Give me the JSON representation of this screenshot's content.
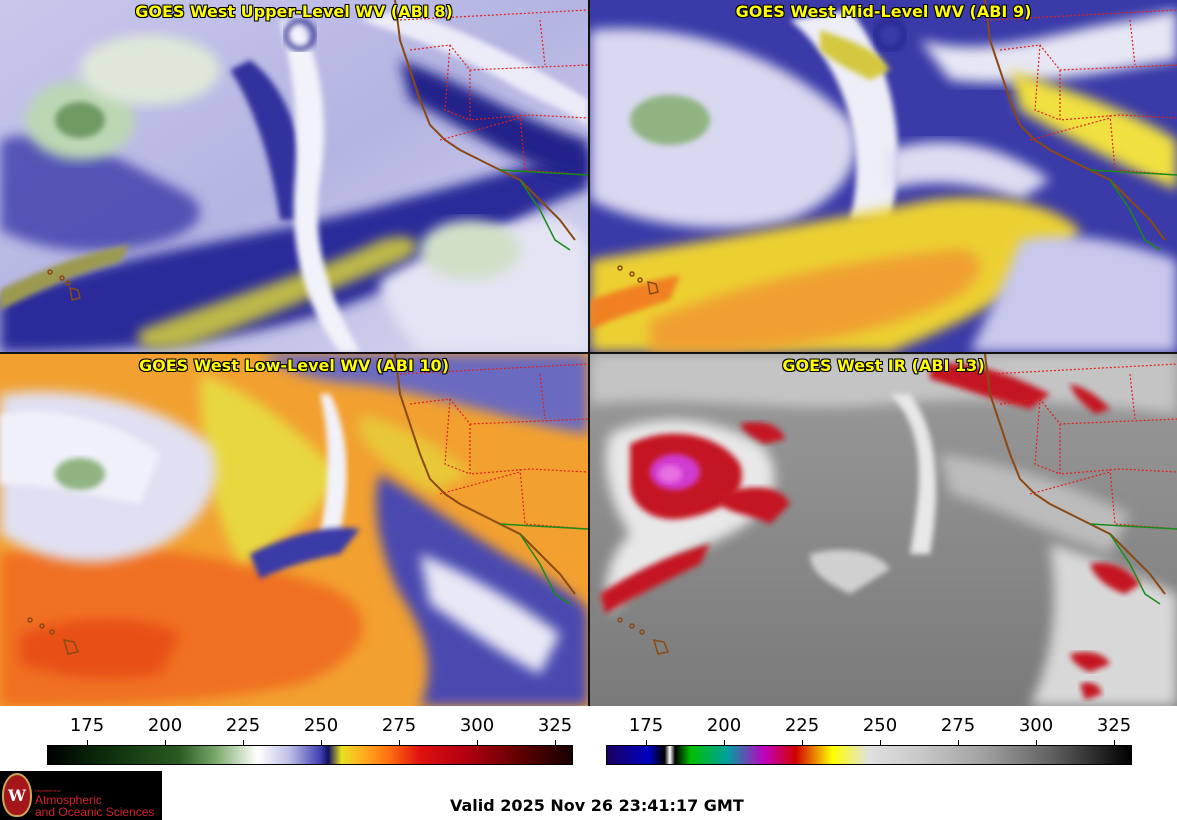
{
  "panels": {
    "upper": {
      "title": "GOES West Upper-Level WV (ABI 8)"
    },
    "mid": {
      "title": "GOES West Mid-Level WV (ABI 9)"
    },
    "low": {
      "title": "GOES West Low-Level WV (ABI 10)"
    },
    "ir": {
      "title": "GOES West IR (ABI 13)"
    }
  },
  "colorbars": {
    "wv": {
      "ticks": [
        "175",
        "200",
        "225",
        "250",
        "275",
        "300",
        "325"
      ]
    },
    "ir": {
      "ticks": [
        "175",
        "200",
        "225",
        "250",
        "275",
        "300",
        "325"
      ]
    }
  },
  "logo": {
    "dept_line": "Department of",
    "name_line1": "Atmospheric",
    "name_line2": "and Oceanic Sciences",
    "seal_letter": "W"
  },
  "footer": {
    "valid_time": "Valid 2025 Nov 26 23:41:17 GMT"
  },
  "colors": {
    "title_text": "#ffff00",
    "state_borders": "#e0201c",
    "coastline": "#8b4a14",
    "mexico_border": "#1a8a1a"
  }
}
